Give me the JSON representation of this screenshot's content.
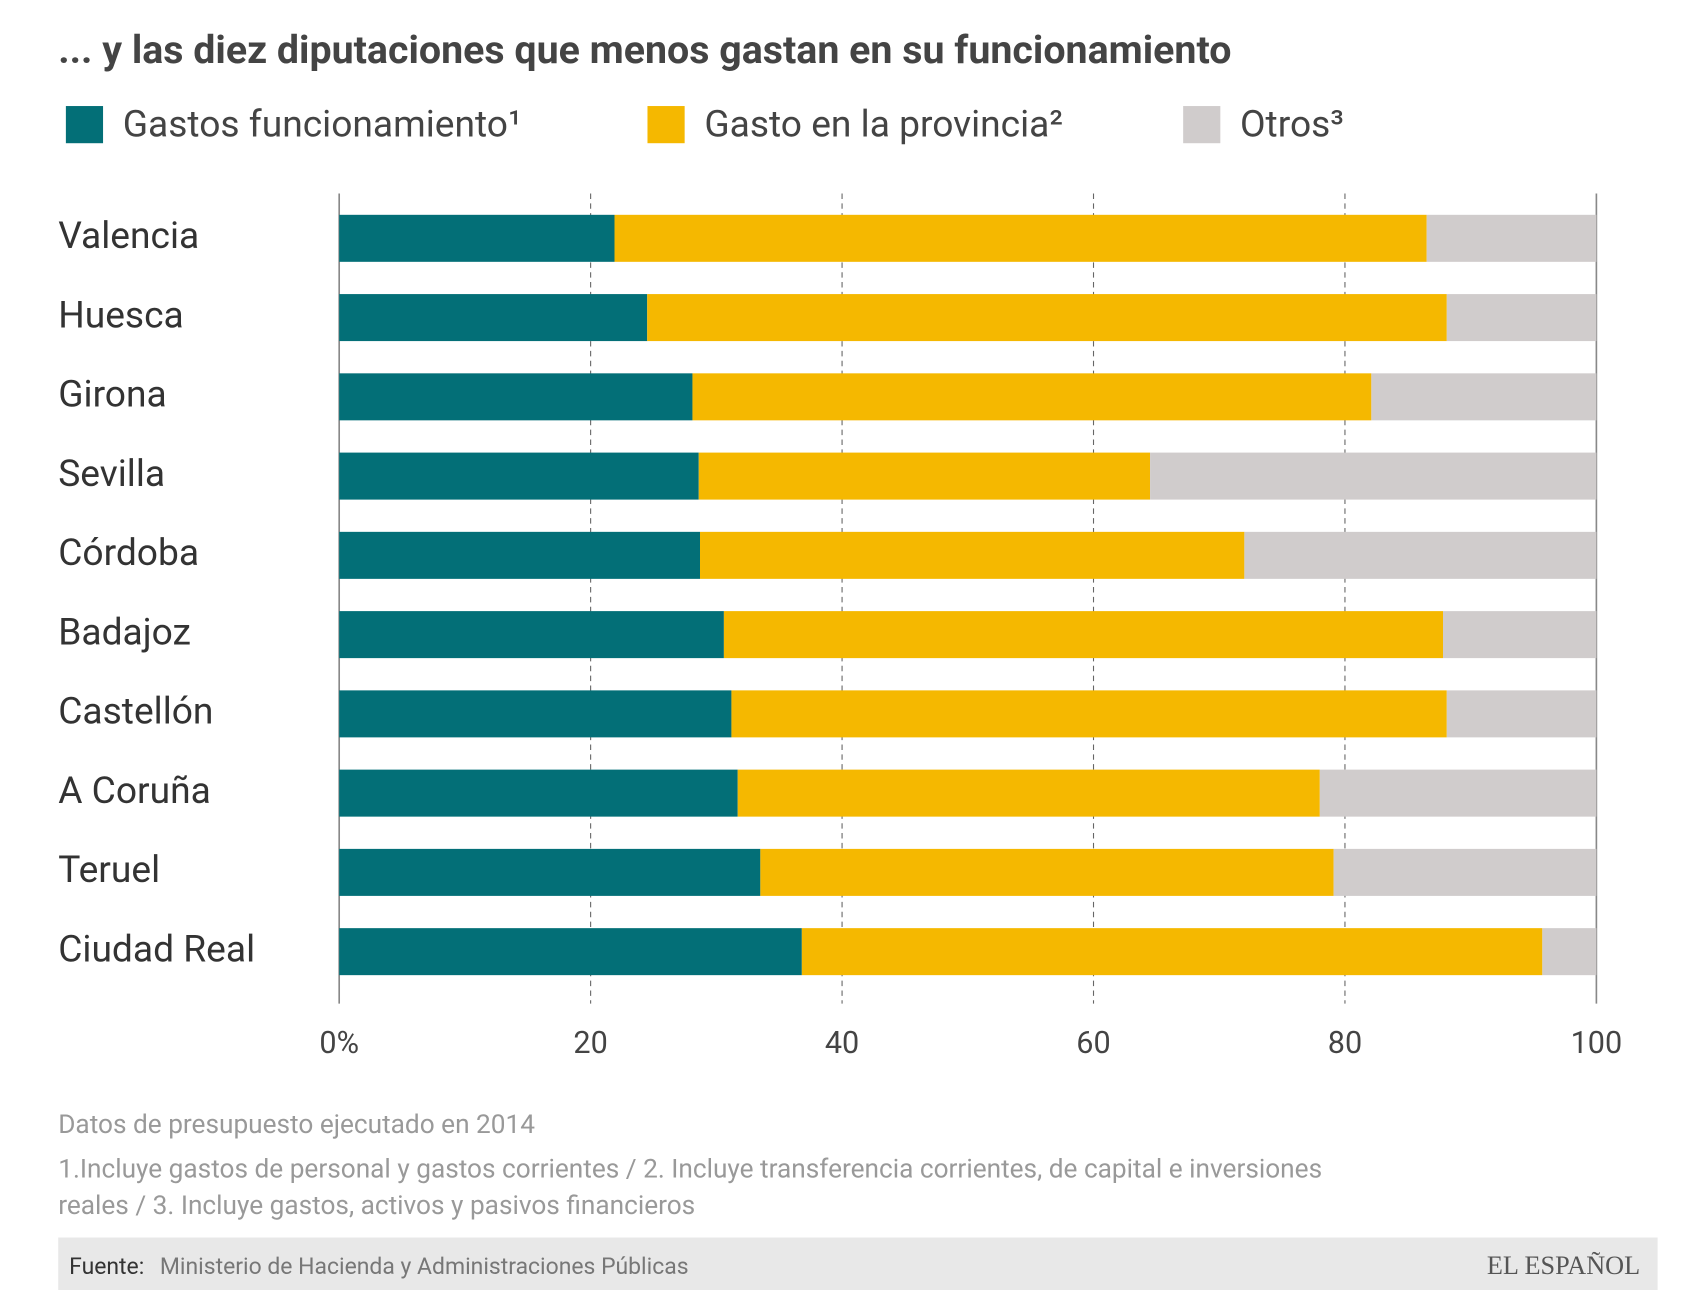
{
  "chart_data": {
    "type": "stacked-barh",
    "title": "... y las diez diputaciones que menos gastan en su funcionamiento",
    "categories": [
      "Valencia",
      "Huesca",
      "Girona",
      "Sevilla",
      "Córdoba",
      "Badajoz",
      "Castellón",
      "A Coruña",
      "Teruel",
      "Ciudad Real"
    ],
    "series": [
      {
        "name": "Gastos funcionamiento¹",
        "color": "#036f77",
        "values": [
          21.9,
          24.5,
          28.1,
          28.6,
          28.7,
          30.6,
          31.2,
          31.7,
          33.5,
          36.8
        ]
      },
      {
        "name": "Gasto en la provincia²",
        "color": "#f5b800",
        "values": [
          64.6,
          63.6,
          54.0,
          35.9,
          43.3,
          57.2,
          56.9,
          46.3,
          45.6,
          58.9
        ]
      },
      {
        "name": "Otros³",
        "color": "#d0cccc",
        "values": [
          13.5,
          11.9,
          17.9,
          35.5,
          28.0,
          12.2,
          11.9,
          22.0,
          20.9,
          4.3
        ]
      }
    ],
    "xlim": [
      0,
      100
    ],
    "xticks": [
      {
        "value": 0,
        "label": "0%"
      },
      20,
      40,
      60,
      80,
      100
    ],
    "grid": true,
    "notes": [
      "Datos de presupuesto ejecutado en 2014",
      "1.Incluye gastos de personal y gastos corrientes / 2. Incluye transferencia corrientes, de capital e inversiones",
      "reales / 3. Incluye gastos, activos y pasivos financieros"
    ],
    "source_label": "Fuente:",
    "source": "Ministerio de Hacienda y Administraciones Públicas",
    "brand": "EL ESPAÑOL"
  }
}
